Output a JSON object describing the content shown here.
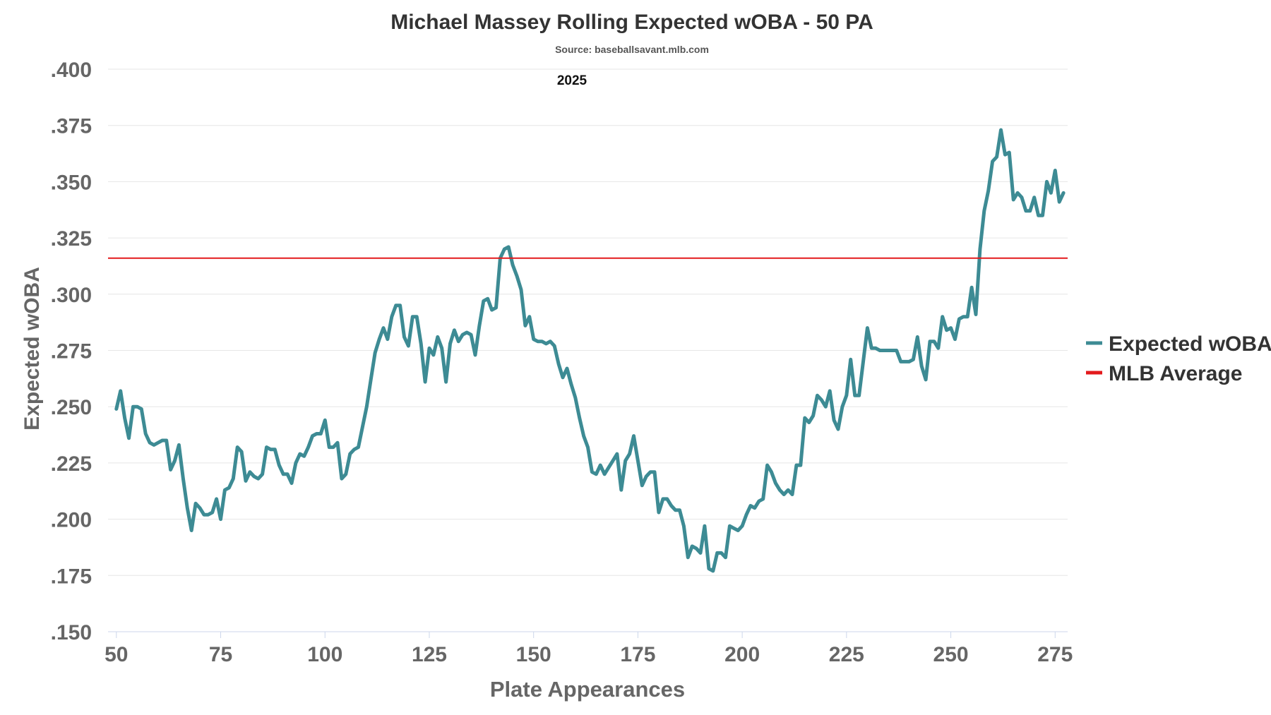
{
  "chart_data": {
    "type": "line",
    "title": "Michael Massey Rolling Expected wOBA - 50 PA",
    "subtitle": "Source: baseballsavant.mlb.com",
    "season_label": "2025",
    "xlabel": "Plate Appearances",
    "ylabel": "Expected wOBA",
    "xlim": [
      48,
      278
    ],
    "ylim": [
      0.15,
      0.4
    ],
    "x_ticks": [
      50,
      75,
      100,
      125,
      150,
      175,
      200,
      225,
      250,
      275
    ],
    "x_tick_labels": [
      "50",
      "75",
      "100",
      "125",
      "150",
      "175",
      "200",
      "225",
      "250",
      "275"
    ],
    "y_ticks": [
      0.15,
      0.175,
      0.2,
      0.225,
      0.25,
      0.275,
      0.3,
      0.325,
      0.35,
      0.375,
      0.4
    ],
    "y_tick_labels": [
      ".150",
      ".175",
      ".200",
      ".225",
      ".250",
      ".275",
      ".300",
      ".325",
      ".350",
      ".375",
      ".400"
    ],
    "grid": true,
    "legend": {
      "placement": "right"
    },
    "series": [
      {
        "name": "Expected wOBA",
        "color": "#3d8b94",
        "x": [
          50,
          51,
          52,
          53,
          54,
          55,
          56,
          57,
          58,
          59,
          60,
          61,
          62,
          63,
          64,
          65,
          66,
          67,
          68,
          69,
          70,
          71,
          72,
          73,
          74,
          75,
          76,
          77,
          78,
          79,
          80,
          81,
          82,
          83,
          84,
          85,
          86,
          87,
          88,
          89,
          90,
          91,
          92,
          93,
          94,
          95,
          96,
          97,
          98,
          99,
          100,
          101,
          102,
          103,
          104,
          105,
          106,
          107,
          108,
          109,
          110,
          111,
          112,
          113,
          114,
          115,
          116,
          117,
          118,
          119,
          120,
          121,
          122,
          123,
          124,
          125,
          126,
          127,
          128,
          129,
          130,
          131,
          132,
          133,
          134,
          135,
          136,
          137,
          138,
          139,
          140,
          141,
          142,
          143,
          144,
          145,
          146,
          147,
          148,
          149,
          150,
          151,
          152,
          153,
          154,
          155,
          156,
          157,
          158,
          159,
          160,
          161,
          162,
          163,
          164,
          165,
          166,
          167,
          168,
          169,
          170,
          171,
          172,
          173,
          174,
          175,
          176,
          177,
          178,
          179,
          180,
          181,
          182,
          183,
          184,
          185,
          186,
          187,
          188,
          189,
          190,
          191,
          192,
          193,
          194,
          195,
          196,
          197,
          198,
          199,
          200,
          201,
          202,
          203,
          204,
          205,
          206,
          207,
          208,
          209,
          210,
          211,
          212,
          213,
          214,
          215,
          216,
          217,
          218,
          219,
          220,
          221,
          222,
          223,
          224,
          225,
          226,
          227,
          228,
          229,
          230,
          231,
          232,
          233,
          234,
          235,
          236,
          237,
          238,
          239,
          240,
          241,
          242,
          243,
          244,
          245,
          246,
          247,
          248,
          249,
          250,
          251,
          252,
          253,
          254,
          255,
          256,
          257,
          258,
          259,
          260,
          261,
          262,
          263,
          264,
          265,
          266,
          267,
          268,
          269,
          270,
          271,
          272,
          273,
          274,
          275,
          276,
          277
        ],
        "values": [
          0.249,
          0.257,
          0.245,
          0.236,
          0.25,
          0.25,
          0.249,
          0.238,
          0.234,
          0.233,
          0.234,
          0.235,
          0.235,
          0.222,
          0.226,
          0.233,
          0.218,
          0.205,
          0.195,
          0.207,
          0.205,
          0.202,
          0.202,
          0.203,
          0.209,
          0.2,
          0.213,
          0.214,
          0.218,
          0.232,
          0.23,
          0.217,
          0.221,
          0.219,
          0.218,
          0.22,
          0.232,
          0.231,
          0.231,
          0.224,
          0.22,
          0.22,
          0.216,
          0.225,
          0.229,
          0.228,
          0.232,
          0.237,
          0.238,
          0.238,
          0.244,
          0.232,
          0.232,
          0.234,
          0.218,
          0.22,
          0.229,
          0.231,
          0.232,
          0.241,
          0.25,
          0.262,
          0.274,
          0.28,
          0.285,
          0.28,
          0.29,
          0.295,
          0.295,
          0.281,
          0.277,
          0.29,
          0.29,
          0.278,
          0.261,
          0.276,
          0.273,
          0.281,
          0.276,
          0.261,
          0.278,
          0.284,
          0.279,
          0.282,
          0.283,
          0.282,
          0.273,
          0.286,
          0.297,
          0.298,
          0.293,
          0.294,
          0.316,
          0.32,
          0.321,
          0.313,
          0.308,
          0.302,
          0.286,
          0.29,
          0.28,
          0.279,
          0.279,
          0.278,
          0.279,
          0.277,
          0.269,
          0.263,
          0.267,
          0.26,
          0.254,
          0.245,
          0.237,
          0.232,
          0.221,
          0.22,
          0.224,
          0.22,
          0.223,
          0.226,
          0.229,
          0.213,
          0.226,
          0.229,
          0.237,
          0.226,
          0.215,
          0.219,
          0.221,
          0.221,
          0.203,
          0.209,
          0.209,
          0.206,
          0.204,
          0.204,
          0.197,
          0.183,
          0.188,
          0.187,
          0.185,
          0.197,
          0.178,
          0.177,
          0.185,
          0.185,
          0.183,
          0.197,
          0.196,
          0.195,
          0.197,
          0.202,
          0.206,
          0.205,
          0.208,
          0.209,
          0.224,
          0.221,
          0.216,
          0.213,
          0.211,
          0.213,
          0.211,
          0.224,
          0.224,
          0.245,
          0.243,
          0.246,
          0.255,
          0.253,
          0.25,
          0.257,
          0.244,
          0.24,
          0.25,
          0.255,
          0.271,
          0.255,
          0.255,
          0.27,
          0.285,
          0.276,
          0.276,
          0.275,
          0.275,
          0.275,
          0.275,
          0.275,
          0.27,
          0.27,
          0.27,
          0.271,
          0.281,
          0.268,
          0.262,
          0.279,
          0.279,
          0.276,
          0.29,
          0.284,
          0.285,
          0.28,
          0.289,
          0.29,
          0.29,
          0.303,
          0.291,
          0.32,
          0.337,
          0.346,
          0.359,
          0.361,
          0.373,
          0.362,
          0.363,
          0.342,
          0.345,
          0.343,
          0.337,
          0.337,
          0.343,
          0.335,
          0.335,
          0.35,
          0.345,
          0.355,
          0.341,
          0.345
        ]
      },
      {
        "name": "MLB Average",
        "color": "#e31a1c",
        "constant": 0.316
      }
    ]
  }
}
